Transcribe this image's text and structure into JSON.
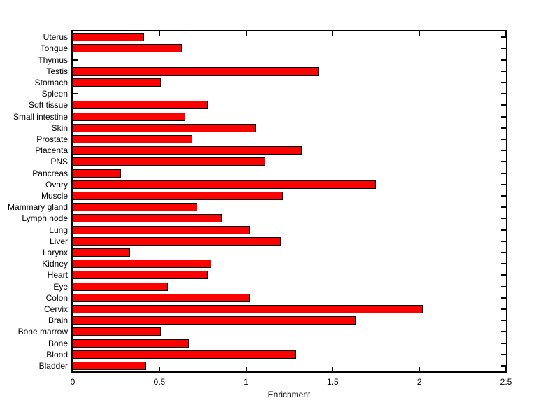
{
  "figure": {
    "background_color": "#ffffff",
    "axis_color": "#000000"
  },
  "chart_data": {
    "type": "bar",
    "orientation": "horizontal",
    "title": "",
    "xlabel": "Enrichment",
    "ylabel": "",
    "xlim": [
      0,
      2.5
    ],
    "xticks": [
      0,
      0.5,
      1,
      1.5,
      2,
      2.5
    ],
    "xtick_labels": [
      "0",
      "0.5",
      "1",
      "1.5",
      "2",
      "2.5"
    ],
    "grid": false,
    "legend": false,
    "bar_color": "#ff0000",
    "bar_edge_color": "#000000",
    "categories": [
      "Uterus",
      "Tongue",
      "Thymus",
      "Testis",
      "Stomach",
      "Spleen",
      "Soft tissue",
      "Small intestine",
      "Skin",
      "Prostate",
      "Placenta",
      "PNS",
      "Pancreas",
      "Ovary",
      "Muscle",
      "Mammary gland",
      "Lymph node",
      "Lung",
      "Liver",
      "Larynx",
      "Kidney",
      "Heart",
      "Eye",
      "Colon",
      "Cervix",
      "Brain",
      "Bone marrow",
      "Bone",
      "Blood",
      "Bladder"
    ],
    "values": [
      0.41,
      0.63,
      0,
      1.42,
      0.51,
      0,
      0.78,
      0.65,
      1.06,
      0.69,
      1.32,
      1.11,
      0.28,
      1.75,
      1.21,
      0.72,
      0.86,
      1.02,
      1.2,
      0.33,
      0.8,
      0.78,
      0.55,
      1.02,
      2.02,
      1.63,
      0.51,
      0.67,
      1.29,
      0.42
    ]
  }
}
